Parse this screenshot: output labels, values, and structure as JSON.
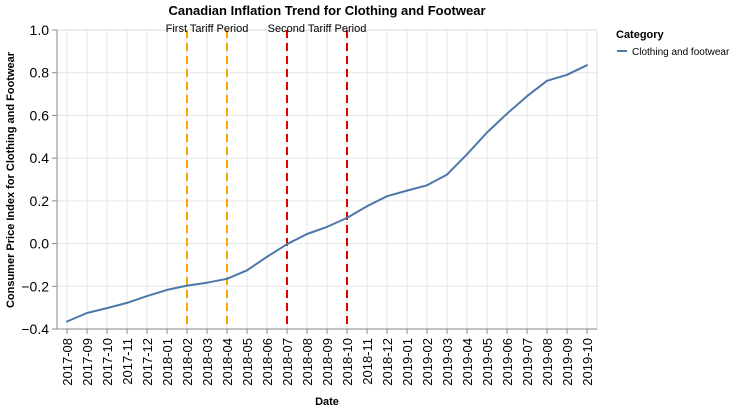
{
  "chart_data": {
    "type": "line",
    "title": "Canadian Inflation Trend for Clothing and Footwear",
    "xlabel": "Date",
    "ylabel": "Consumer Price Index for Clothing and Footwear",
    "ylim": [
      -0.4,
      1.0
    ],
    "yticks": [
      "−0.4",
      "−0.2",
      "0.0",
      "0.2",
      "0.4",
      "0.6",
      "0.8",
      "1.0"
    ],
    "ytick_values": [
      -0.4,
      -0.2,
      0.0,
      0.2,
      0.4,
      0.6,
      0.8,
      1.0
    ],
    "categories": [
      "2017-08",
      "2017-09",
      "2017-10",
      "2017-11",
      "2017-12",
      "2018-01",
      "2018-02",
      "2018-03",
      "2018-04",
      "2018-05",
      "2018-06",
      "2018-07",
      "2018-08",
      "2018-09",
      "2018-10",
      "2018-11",
      "2018-12",
      "2019-01",
      "2019-02",
      "2019-03",
      "2019-04",
      "2019-05",
      "2019-06",
      "2019-07",
      "2019-08",
      "2019-09",
      "2019-10"
    ],
    "series": [
      {
        "name": "Clothing and footwear",
        "color": "#4c78a8",
        "values": [
          -0.365,
          -0.325,
          -0.302,
          -0.278,
          -0.246,
          -0.217,
          -0.197,
          -0.183,
          -0.165,
          -0.125,
          -0.062,
          -0.003,
          0.045,
          0.078,
          0.12,
          0.175,
          0.222,
          0.248,
          0.273,
          0.323,
          0.418,
          0.52,
          0.608,
          0.69,
          0.762,
          0.79,
          0.835
        ]
      }
    ],
    "legend": {
      "title": "Category",
      "position": "right"
    },
    "annotations": [
      {
        "label": "First Tariff Period",
        "start": "2018-02",
        "end": "2018-04",
        "color": "#ffa500"
      },
      {
        "label": "Second Tariff Period",
        "start": "2018-07",
        "end": "2018-10",
        "color": "#e00000"
      }
    ],
    "grid": true
  }
}
